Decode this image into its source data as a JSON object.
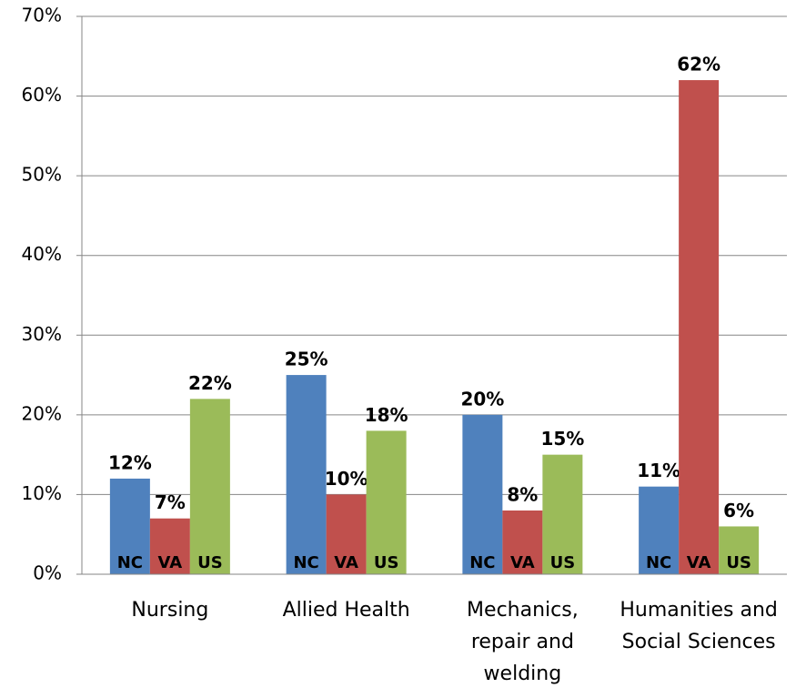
{
  "chart_data": {
    "type": "bar",
    "categories": [
      "Nursing",
      "Allied Health",
      "Mechanics, repair and welding",
      "Humanities and Social Sciences"
    ],
    "series": [
      {
        "name": "NC",
        "color": "#4f81bd",
        "values": [
          12,
          25,
          20,
          11
        ],
        "value_labels": [
          "12%",
          "25%",
          "20%",
          "11%"
        ]
      },
      {
        "name": "VA",
        "color": "#c0504d",
        "values": [
          7,
          10,
          8,
          62
        ],
        "value_labels": [
          "7%",
          "10%",
          "8%",
          "62%"
        ]
      },
      {
        "name": "US",
        "color": "#9bbb59",
        "values": [
          22,
          18,
          15,
          6
        ],
        "value_labels": [
          "22%",
          "18%",
          "15%",
          "6%"
        ]
      }
    ],
    "ylim": [
      0,
      70
    ],
    "yticks": [
      {
        "value": 0,
        "label": "0%"
      },
      {
        "value": 10,
        "label": "10%"
      },
      {
        "value": 20,
        "label": "20%"
      },
      {
        "value": 30,
        "label": "30%"
      },
      {
        "value": 40,
        "label": "40%"
      },
      {
        "value": 50,
        "label": "50%"
      },
      {
        "value": 60,
        "label": "60%"
      },
      {
        "value": 70,
        "label": "70%"
      }
    ],
    "grid": true
  }
}
